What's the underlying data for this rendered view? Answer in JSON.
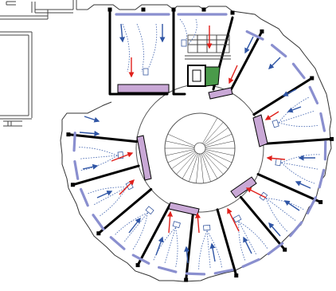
{
  "diagram": {
    "type": "building-ventilation-floor-plan",
    "colors": {
      "blue_arrow": "#2f55a5",
      "red_arrow": "#e0201b",
      "duct_fill": "#c9a8d6",
      "shaft_fill": "#4a9a4a",
      "window": "#8a8fcf",
      "flow_line": "#4466b0"
    },
    "legend": [],
    "elements": {
      "central_hall": "circular-core",
      "spiral_staircase": "staircase-icon",
      "rooms": 12,
      "supply_ducts": 6,
      "ventilation_shafts": 1
    }
  }
}
